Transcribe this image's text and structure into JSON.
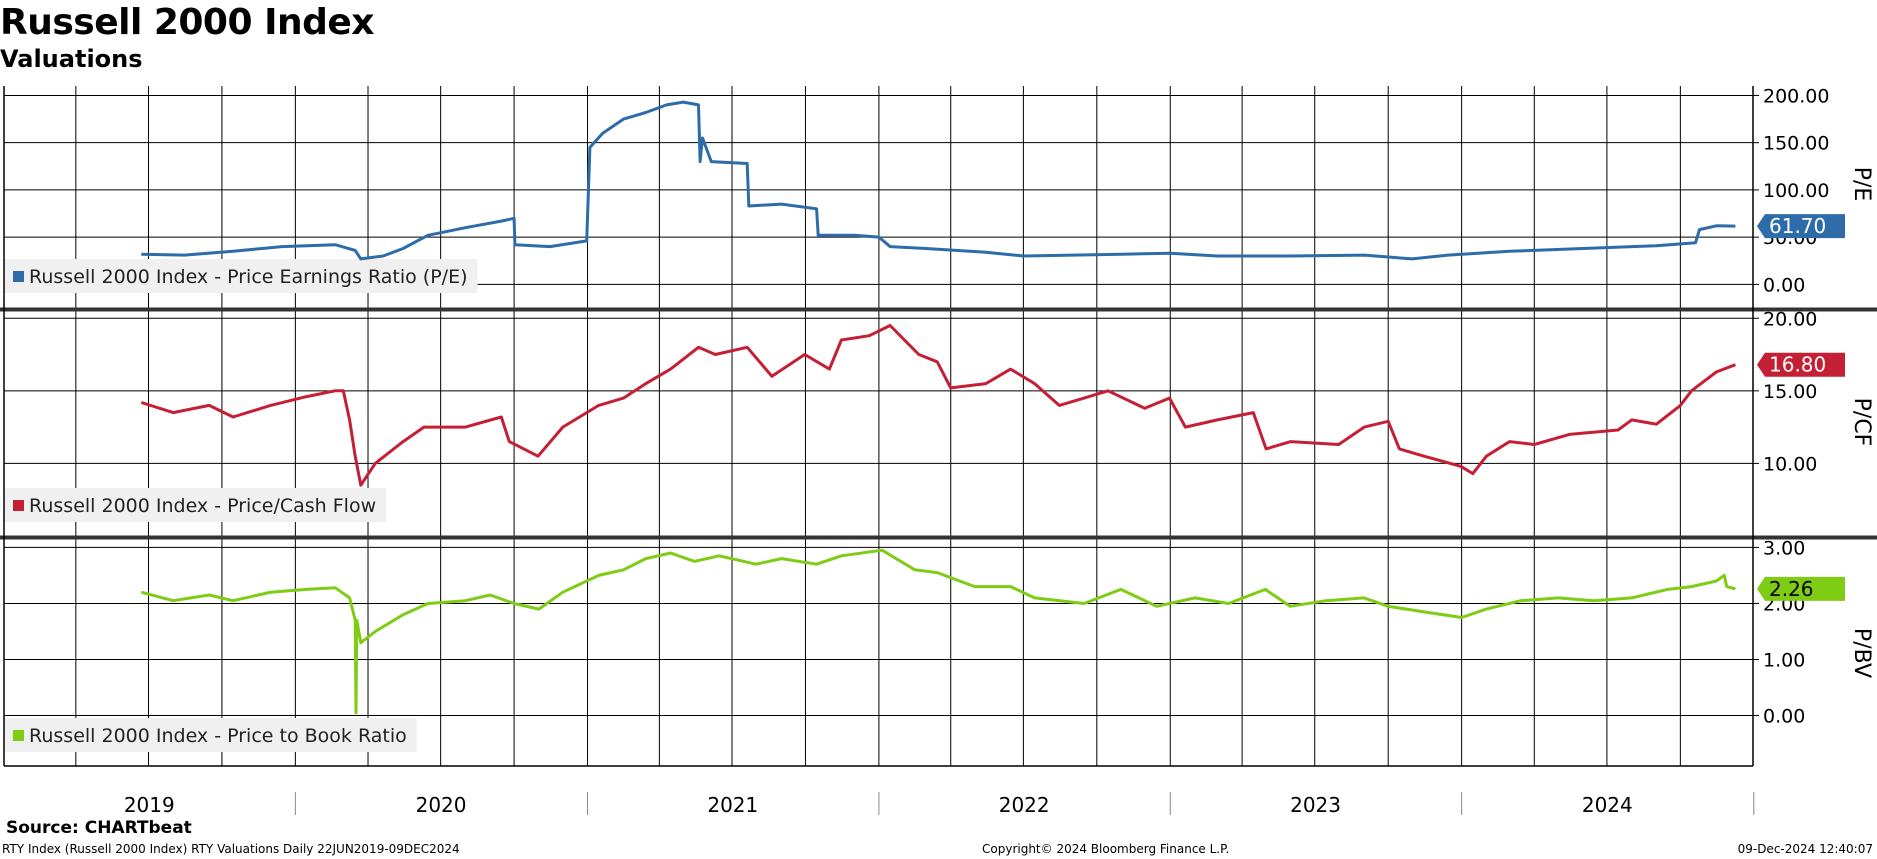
{
  "title": "Russell 2000 Index",
  "subtitle": "Valuations",
  "source": "Source: CHARTbeat",
  "footer": {
    "left": "RTY Index (Russell 2000 Index) RTY Valuations  Daily 22JUN2019-09DEC2024",
    "center": "Copyright© 2024 Bloomberg Finance L.P.",
    "right": "09-Dec-2024 12:40:07"
  },
  "chart_data": [
    {
      "type": "line",
      "ylabel": "P/E",
      "ylim": [
        -25,
        210
      ],
      "yticks": [
        "0.00",
        "50.00",
        "100.00",
        "150.00",
        "200.00"
      ],
      "ytick_values": [
        0,
        50,
        100,
        150,
        200
      ],
      "grid": true,
      "legend": "bottom-left",
      "color": "#2d6ca8",
      "series": [
        {
          "name": "Russell 2000 Index - Price Earnings Ratio (P/E)",
          "last_value": "61.70",
          "points": [
            [
              "2019-06-22",
              32
            ],
            [
              "2019-08-15",
              31
            ],
            [
              "2019-10-15",
              35
            ],
            [
              "2019-12-15",
              40
            ],
            [
              "2020-02-20",
              42
            ],
            [
              "2020-03-16",
              36
            ],
            [
              "2020-03-23",
              27
            ],
            [
              "2020-04-20",
              30
            ],
            [
              "2020-05-15",
              38
            ],
            [
              "2020-06-15",
              52
            ],
            [
              "2020-08-01",
              60
            ],
            [
              "2020-09-15",
              67
            ],
            [
              "2020-10-01",
              70
            ],
            [
              "2020-10-02",
              42
            ],
            [
              "2020-11-15",
              40
            ],
            [
              "2020-12-31",
              46
            ],
            [
              "2021-01-04",
              145
            ],
            [
              "2021-01-20",
              160
            ],
            [
              "2021-02-15",
              175
            ],
            [
              "2021-03-15",
              182
            ],
            [
              "2021-04-10",
              190
            ],
            [
              "2021-05-01",
              193
            ],
            [
              "2021-05-20",
              190
            ],
            [
              "2021-05-22",
              130
            ],
            [
              "2021-05-25",
              155
            ],
            [
              "2021-06-05",
              130
            ],
            [
              "2021-07-20",
              128
            ],
            [
              "2021-07-22",
              83
            ],
            [
              "2021-09-01",
              85
            ],
            [
              "2021-10-15",
              80
            ],
            [
              "2021-10-17",
              52
            ],
            [
              "2021-12-01",
              52
            ],
            [
              "2022-01-01",
              50
            ],
            [
              "2022-01-15",
              40
            ],
            [
              "2022-03-01",
              38
            ],
            [
              "2022-05-15",
              34
            ],
            [
              "2022-07-01",
              30
            ],
            [
              "2022-09-01",
              31
            ],
            [
              "2022-11-01",
              32
            ],
            [
              "2023-01-01",
              33
            ],
            [
              "2023-03-01",
              30
            ],
            [
              "2023-06-01",
              30
            ],
            [
              "2023-09-01",
              31
            ],
            [
              "2023-10-31",
              27
            ],
            [
              "2023-12-15",
              31
            ],
            [
              "2024-03-01",
              35
            ],
            [
              "2024-06-01",
              38
            ],
            [
              "2024-09-01",
              41
            ],
            [
              "2024-10-20",
              44
            ],
            [
              "2024-10-25",
              58
            ],
            [
              "2024-11-15",
              62
            ],
            [
              "2024-12-09",
              61.7
            ]
          ]
        }
      ]
    },
    {
      "type": "line",
      "ylabel": "P/CF",
      "ylim": [
        5,
        20.5
      ],
      "yticks": [
        "10.00",
        "15.00",
        "20.00"
      ],
      "ytick_values": [
        10,
        15,
        20
      ],
      "grid": true,
      "legend": "bottom-left",
      "color": "#c41f35",
      "series": [
        {
          "name": "Russell 2000 Index - Price/Cash Flow",
          "last_value": "16.80",
          "points": [
            [
              "2019-06-22",
              14.2
            ],
            [
              "2019-08-01",
              13.5
            ],
            [
              "2019-09-15",
              14
            ],
            [
              "2019-10-15",
              13.2
            ],
            [
              "2019-12-01",
              14
            ],
            [
              "2020-01-15",
              14.6
            ],
            [
              "2020-02-20",
              15
            ],
            [
              "2020-03-01",
              15
            ],
            [
              "2020-03-09",
              13
            ],
            [
              "2020-03-16",
              10.5
            ],
            [
              "2020-03-23",
              8.5
            ],
            [
              "2020-04-10",
              10
            ],
            [
              "2020-05-15",
              11.5
            ],
            [
              "2020-06-10",
              12.5
            ],
            [
              "2020-08-01",
              12.5
            ],
            [
              "2020-09-15",
              13.2
            ],
            [
              "2020-09-25",
              11.5
            ],
            [
              "2020-10-31",
              10.5
            ],
            [
              "2020-12-01",
              12.5
            ],
            [
              "2021-01-15",
              14
            ],
            [
              "2021-02-15",
              14.5
            ],
            [
              "2021-03-15",
              15.5
            ],
            [
              "2021-04-15",
              16.5
            ],
            [
              "2021-05-20",
              18
            ],
            [
              "2021-06-10",
              17.5
            ],
            [
              "2021-07-20",
              18
            ],
            [
              "2021-08-20",
              16
            ],
            [
              "2021-09-30",
              17.5
            ],
            [
              "2021-10-31",
              16.5
            ],
            [
              "2021-11-15",
              18.5
            ],
            [
              "2021-12-20",
              18.8
            ],
            [
              "2022-01-15",
              19.5
            ],
            [
              "2022-02-20",
              17.5
            ],
            [
              "2022-03-15",
              17
            ],
            [
              "2022-04-01",
              15.2
            ],
            [
              "2022-05-15",
              15.5
            ],
            [
              "2022-06-15",
              16.5
            ],
            [
              "2022-07-15",
              15.5
            ],
            [
              "2022-08-15",
              14
            ],
            [
              "2022-09-15",
              14.5
            ],
            [
              "2022-10-15",
              15
            ],
            [
              "2022-11-30",
              13.8
            ],
            [
              "2022-12-31",
              14.5
            ],
            [
              "2023-01-20",
              12.5
            ],
            [
              "2023-03-01",
              13
            ],
            [
              "2023-04-15",
              13.5
            ],
            [
              "2023-05-01",
              11
            ],
            [
              "2023-06-01",
              11.5
            ],
            [
              "2023-07-31",
              11.3
            ],
            [
              "2023-09-01",
              12.5
            ],
            [
              "2023-10-01",
              12.9
            ],
            [
              "2023-10-15",
              11
            ],
            [
              "2023-11-15",
              10.5
            ],
            [
              "2023-12-31",
              9.8
            ],
            [
              "2024-01-15",
              9.3
            ],
            [
              "2024-02-01",
              10.5
            ],
            [
              "2024-03-01",
              11.5
            ],
            [
              "2024-04-01",
              11.3
            ],
            [
              "2024-05-15",
              12
            ],
            [
              "2024-07-15",
              12.3
            ],
            [
              "2024-08-01",
              13
            ],
            [
              "2024-09-01",
              12.7
            ],
            [
              "2024-10-01",
              14
            ],
            [
              "2024-10-15",
              15
            ],
            [
              "2024-11-15",
              16.3
            ],
            [
              "2024-12-09",
              16.8
            ]
          ]
        }
      ]
    },
    {
      "type": "line",
      "ylabel": "P/BV",
      "ylim": [
        -0.9,
        3.15
      ],
      "yticks": [
        "0.00",
        "1.00",
        "2.00",
        "3.00"
      ],
      "ytick_values": [
        0,
        1,
        2,
        3
      ],
      "grid": true,
      "legend": "bottom-left",
      "color": "#7fcc15",
      "series": [
        {
          "name": "Russell 2000 Index - Price to Book Ratio",
          "last_value": "2.26",
          "points": [
            [
              "2019-06-22",
              2.2
            ],
            [
              "2019-08-01",
              2.05
            ],
            [
              "2019-09-15",
              2.15
            ],
            [
              "2019-10-15",
              2.05
            ],
            [
              "2019-12-01",
              2.2
            ],
            [
              "2020-01-15",
              2.25
            ],
            [
              "2020-02-20",
              2.28
            ],
            [
              "2020-03-09",
              2.1
            ],
            [
              "2020-03-16",
              1.7
            ],
            [
              "2020-03-17",
              0.05
            ],
            [
              "2020-03-18",
              1.7
            ],
            [
              "2020-03-23",
              1.3
            ],
            [
              "2020-04-10",
              1.5
            ],
            [
              "2020-05-15",
              1.8
            ],
            [
              "2020-06-15",
              2
            ],
            [
              "2020-08-01",
              2.05
            ],
            [
              "2020-09-01",
              2.15
            ],
            [
              "2020-10-01",
              2
            ],
            [
              "2020-11-01",
              1.9
            ],
            [
              "2020-12-01",
              2.2
            ],
            [
              "2021-01-15",
              2.5
            ],
            [
              "2021-02-15",
              2.6
            ],
            [
              "2021-03-15",
              2.8
            ],
            [
              "2021-04-15",
              2.9
            ],
            [
              "2021-05-15",
              2.75
            ],
            [
              "2021-06-15",
              2.85
            ],
            [
              "2021-07-31",
              2.7
            ],
            [
              "2021-09-01",
              2.8
            ],
            [
              "2021-10-15",
              2.7
            ],
            [
              "2021-11-15",
              2.85
            ],
            [
              "2022-01-05",
              2.95
            ],
            [
              "2022-02-15",
              2.6
            ],
            [
              "2022-03-15",
              2.55
            ],
            [
              "2022-05-01",
              2.3
            ],
            [
              "2022-06-15",
              2.3
            ],
            [
              "2022-07-15",
              2.1
            ],
            [
              "2022-09-15",
              2.0
            ],
            [
              "2022-10-31",
              2.25
            ],
            [
              "2022-12-15",
              1.95
            ],
            [
              "2023-02-01",
              2.1
            ],
            [
              "2023-03-15",
              2.0
            ],
            [
              "2023-04-30",
              2.25
            ],
            [
              "2023-05-31",
              1.95
            ],
            [
              "2023-07-15",
              2.05
            ],
            [
              "2023-09-01",
              2.1
            ],
            [
              "2023-10-01",
              1.95
            ],
            [
              "2023-11-15",
              1.85
            ],
            [
              "2024-01-01",
              1.75
            ],
            [
              "2024-02-01",
              1.9
            ],
            [
              "2024-03-15",
              2.05
            ],
            [
              "2024-05-01",
              2.1
            ],
            [
              "2024-06-15",
              2.05
            ],
            [
              "2024-08-01",
              2.1
            ],
            [
              "2024-09-15",
              2.25
            ],
            [
              "2024-10-15",
              2.3
            ],
            [
              "2024-11-15",
              2.4
            ],
            [
              "2024-11-25",
              2.5
            ],
            [
              "2024-11-28",
              2.3
            ],
            [
              "2024-12-09",
              2.26
            ]
          ]
        }
      ]
    }
  ],
  "x_axis": {
    "range": [
      "2019-01-01",
      "2024-12-31"
    ],
    "labels": [
      "2019",
      "2020",
      "2021",
      "2022",
      "2023",
      "2024"
    ]
  }
}
